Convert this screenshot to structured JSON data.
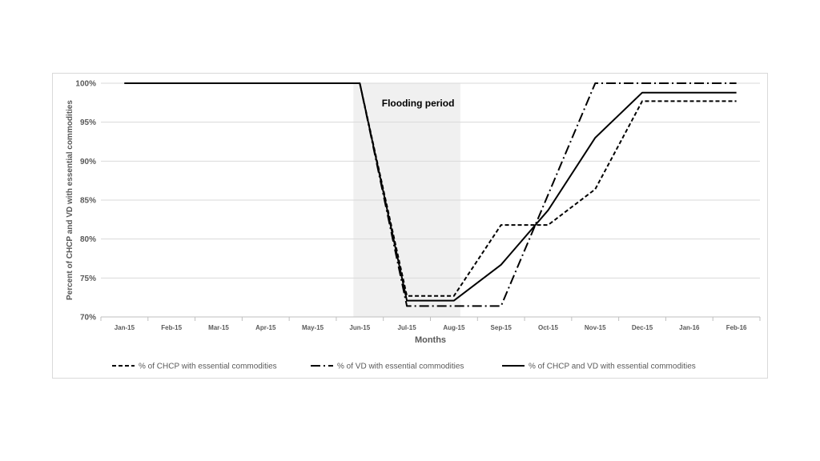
{
  "chart_data": {
    "type": "line",
    "title": "",
    "xlabel": "Months",
    "ylabel": "Percent of CHCP and VD with essential commodities",
    "categories": [
      "Jan-15",
      "Feb-15",
      "Mar-15",
      "Apr-15",
      "May-15",
      "Jun-15",
      "Jul-15",
      "Aug-15",
      "Sep-15",
      "Oct-15",
      "Nov-15",
      "Dec-15",
      "Jan-16",
      "Feb-16"
    ],
    "ylim": [
      70,
      100
    ],
    "yticks": [
      70,
      75,
      80,
      85,
      90,
      95,
      100
    ],
    "ytick_labels": [
      "70%",
      "75%",
      "80%",
      "85%",
      "90%",
      "95%",
      "100%"
    ],
    "grid": "horizontal",
    "annotation": {
      "label": "Flooding period",
      "from_index": 5,
      "to_index": 7,
      "fill": "#f0f0f0"
    },
    "series": [
      {
        "name": "% of CHCP with essential commodities",
        "style": "dashed",
        "color": "#000000",
        "values": [
          100,
          100,
          100,
          100,
          100,
          100,
          72.7,
          72.7,
          81.8,
          81.8,
          86.4,
          97.7,
          97.7,
          97.7
        ]
      },
      {
        "name": "% of VD with essential commodities",
        "style": "dashdot",
        "color": "#000000",
        "values": [
          100,
          100,
          100,
          100,
          100,
          100,
          71.4,
          71.4,
          71.4,
          85.7,
          100,
          100,
          100,
          100
        ]
      },
      {
        "name": "% of CHCP and VD with essential commodities",
        "style": "solid",
        "color": "#000000",
        "values": [
          100,
          100,
          100,
          100,
          100,
          100,
          72.1,
          72.1,
          76.7,
          83.7,
          93.0,
          98.8,
          98.8,
          98.8
        ]
      }
    ],
    "legend_position": "bottom"
  }
}
